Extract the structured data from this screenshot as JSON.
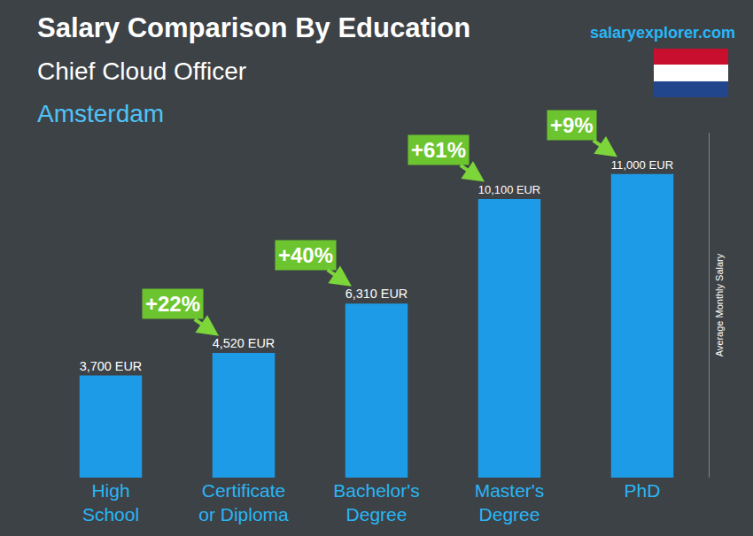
{
  "chart_data": {
    "type": "bar",
    "title": "Salary Comparison By Education",
    "subtitle": "Chief Cloud Officer",
    "location": "Amsterdam",
    "source": "salaryexplorer.com",
    "y_label": "Average Monthly Salary",
    "categories": [
      "High School",
      "Certificate or Diploma",
      "Bachelor's Degree",
      "Master's Degree",
      "PhD"
    ],
    "values": [
      3700,
      4520,
      6310,
      10100,
      11000
    ],
    "value_labels": [
      "3,700 EUR",
      "4,520 EUR",
      "6,310 EUR",
      "10,100 EUR",
      "11,000 EUR"
    ],
    "annotations": [
      "+22%",
      "+40%",
      "+61%",
      "+9%"
    ],
    "color": "#1e9be6",
    "ylim": [
      0,
      12500
    ],
    "grid": false,
    "data_labels": true,
    "tick_labels": "x"
  }
}
